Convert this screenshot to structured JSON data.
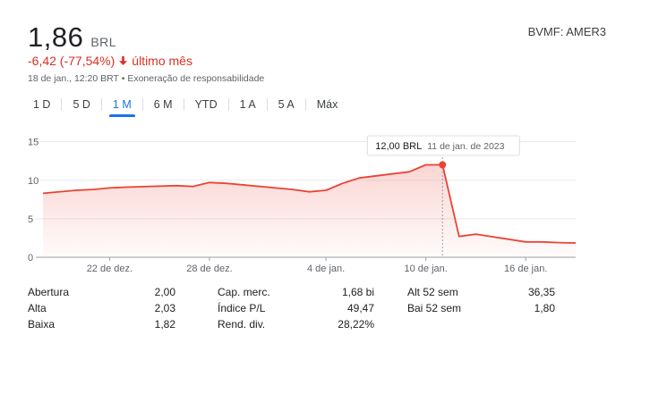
{
  "quote": {
    "price": "1,86",
    "currency": "BRL",
    "ticker": "BVMF: AMER3",
    "change": "-6,42 (-77,54%)",
    "period": "último mês",
    "timestamp": "18 de jan., 12:20 BRT",
    "disclaimer": "Exoneração de responsabilidade",
    "separator": "•"
  },
  "tabs": [
    "1 D",
    "5 D",
    "1 M",
    "6 M",
    "YTD",
    "1 A",
    "5 A",
    "Máx"
  ],
  "active_tab": "1 M",
  "tooltip": {
    "price": "12,00 BRL",
    "date": "11 de jan. de 2023"
  },
  "colors": {
    "line": "#ea4335",
    "down": "#d93025",
    "accent": "#1a73e8",
    "grid": "#e8eaed"
  },
  "chart_data": {
    "type": "area",
    "y_ticks": [
      "15",
      "10",
      "5",
      "0"
    ],
    "ylim": [
      0,
      16
    ],
    "x_tick_labels": [
      "22 de dez.",
      "28 de dez.",
      "4 de jan.",
      "10 de jan.",
      "16 de jan."
    ],
    "x_tick_dates": [
      "2022-12-22",
      "2022-12-28",
      "2023-01-04",
      "2023-01-10",
      "2023-01-16"
    ],
    "xlim": [
      "2022-12-18",
      "2023-01-19"
    ],
    "series": [
      {
        "x": [
          "2022-12-18",
          "2022-12-20",
          "2022-12-21",
          "2022-12-22",
          "2022-12-23",
          "2022-12-26",
          "2022-12-27",
          "2022-12-28",
          "2022-12-29",
          "2023-01-02",
          "2023-01-03",
          "2023-01-04",
          "2023-01-05",
          "2023-01-06",
          "2023-01-09",
          "2023-01-10",
          "2023-01-11",
          "2023-01-12",
          "2023-01-13",
          "2023-01-16",
          "2023-01-17",
          "2023-01-18",
          "2023-01-19"
        ],
        "y": [
          8.3,
          8.7,
          8.8,
          9.0,
          9.1,
          9.3,
          9.2,
          9.7,
          9.6,
          8.8,
          8.5,
          8.7,
          9.6,
          10.3,
          11.1,
          12.0,
          12.0,
          2.7,
          3.0,
          2.0,
          2.0,
          1.9,
          1.86
        ]
      }
    ],
    "highlight": {
      "x": "2023-01-11",
      "y": 12.0
    }
  },
  "stats": {
    "open_label": "Abertura",
    "open": "2,00",
    "high_label": "Alta",
    "high": "2,03",
    "low_label": "Baixa",
    "low": "1,82",
    "mcap_label": "Cap. merc.",
    "mcap": "1,68 bi",
    "pe_label": "Índice P/L",
    "pe": "49,47",
    "div_label": "Rend. div.",
    "div": "28,22%",
    "high52_label": "Alt 52 sem",
    "high52": "36,35",
    "low52_label": "Bai 52 sem",
    "low52": "1,80"
  }
}
